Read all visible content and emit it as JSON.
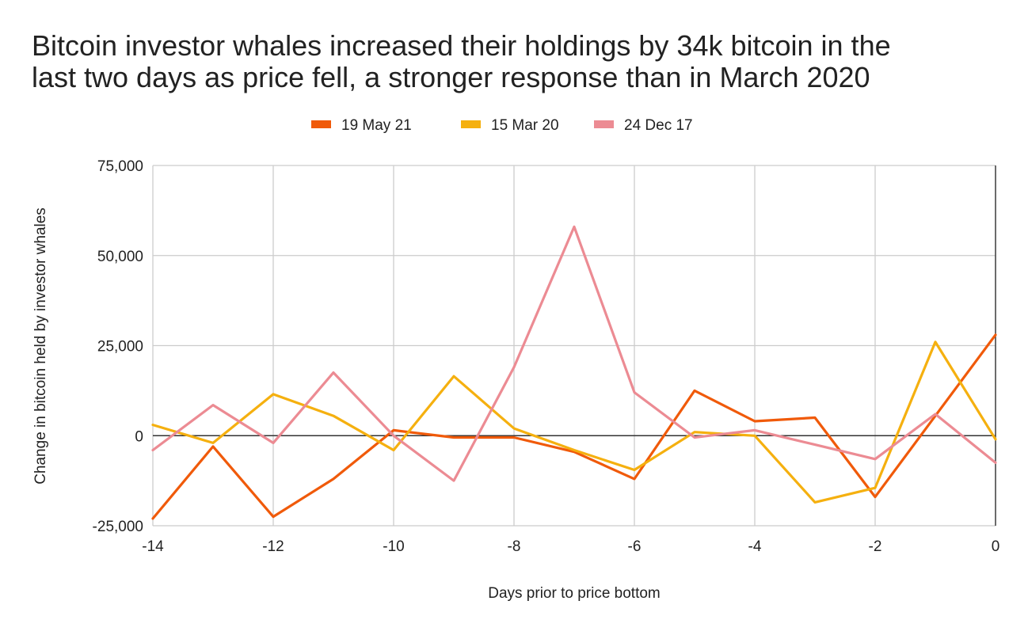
{
  "chart_data": {
    "type": "line",
    "title_lines": [
      "Bitcoin investor whales increased their holdings by 34k bitcoin in the",
      "last two days as price fell, a stronger response than in March 2020"
    ],
    "xlabel": "Days prior to price bottom",
    "ylabel": "Change in bitcoin held by investor whales",
    "xlim": [
      -14,
      0
    ],
    "ylim": [
      -25000,
      75000
    ],
    "x_ticks": [
      -14,
      -12,
      -10,
      -8,
      -6,
      -4,
      -2,
      0
    ],
    "x_tick_labels": [
      "-14",
      "-12",
      "-10",
      "-8",
      "-6",
      "-4",
      "-2",
      "0"
    ],
    "y_ticks": [
      -25000,
      0,
      25000,
      50000,
      75000
    ],
    "y_tick_labels": [
      "-25,000",
      "0",
      "25,000",
      "50,000",
      "75,000"
    ],
    "grid": true,
    "legend_position": "top-center",
    "x": [
      -14,
      -13,
      -12,
      -11,
      -10,
      -9,
      -8,
      -7,
      -6,
      -5,
      -4,
      -3,
      -2,
      -1,
      0
    ],
    "series": [
      {
        "name": "19 May 21",
        "color": "#f05a0a",
        "values": [
          -23000,
          -3000,
          -22500,
          -12000,
          1500,
          -500,
          -500,
          -4500,
          -12000,
          12500,
          4000,
          5000,
          -17000,
          5500,
          28000
        ]
      },
      {
        "name": "15 Mar 20",
        "color": "#f5b00f",
        "values": [
          3000,
          -2000,
          11500,
          5500,
          -4000,
          16500,
          2000,
          -4000,
          -9500,
          1000,
          0,
          -18500,
          -14500,
          26000,
          -1000
        ]
      },
      {
        "name": "24 Dec 17",
        "color": "#ec8b93",
        "values": [
          -4000,
          8500,
          -2000,
          17500,
          0,
          -12500,
          19000,
          58000,
          12000,
          -500,
          1500,
          -2500,
          -6500,
          6000,
          -7500
        ]
      }
    ]
  }
}
